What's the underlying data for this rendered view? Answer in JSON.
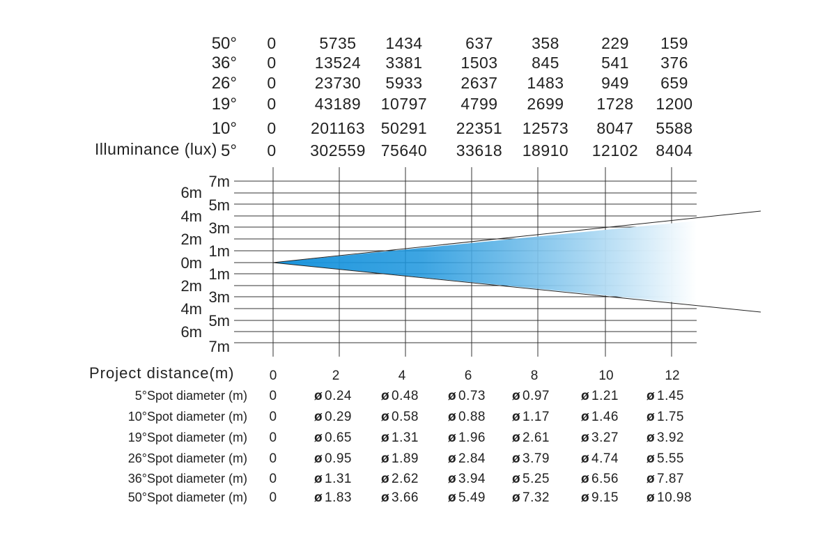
{
  "colors": {
    "beam_start": "#1b95dd",
    "beam_end": "#ffffff",
    "line": "#333333",
    "text": "#222222"
  },
  "illuminance": {
    "label": "Illuminance (lux)",
    "rows": [
      {
        "angle": "50°",
        "values": [
          "0",
          "5735",
          "1434",
          "637",
          "358",
          "229",
          "159"
        ]
      },
      {
        "angle": "36°",
        "values": [
          "0",
          "13524",
          "3381",
          "1503",
          "845",
          "541",
          "376"
        ]
      },
      {
        "angle": "26°",
        "values": [
          "0",
          "23730",
          "5933",
          "2637",
          "1483",
          "949",
          "659"
        ]
      },
      {
        "angle": "19°",
        "values": [
          "0",
          "43189",
          "10797",
          "4799",
          "2699",
          "1728",
          "1200"
        ]
      },
      {
        "angle": "10°",
        "values": [
          "0",
          "201163",
          "50291",
          "22351",
          "12573",
          "8047",
          "5588"
        ]
      },
      {
        "angle": "5°",
        "values": [
          "0",
          "302559",
          "75640",
          "33618",
          "18910",
          "12102",
          "8404"
        ]
      }
    ]
  },
  "beam_scale": {
    "odd_labels": [
      "7m",
      "5m",
      "3m",
      "1m",
      "1m",
      "3m",
      "5m",
      "7m"
    ],
    "even_labels": [
      "6m",
      "4m",
      "2m",
      "0m",
      "2m",
      "4m",
      "6m"
    ]
  },
  "project_distance": {
    "label": "Project distance(m)",
    "values": [
      "0",
      "2",
      "4",
      "6",
      "8",
      "10",
      "12"
    ]
  },
  "spot_diameters": {
    "symbol": "ø",
    "rows": [
      {
        "label": "5°Spot diameter (m)",
        "zero": "0",
        "values": [
          "0.24",
          "0.48",
          "0.73",
          "0.97",
          "1.21",
          "1.45"
        ]
      },
      {
        "label": "10°Spot diameter (m)",
        "zero": "0",
        "values": [
          "0.29",
          "0.58",
          "0.88",
          "1.17",
          "1.46",
          "1.75"
        ]
      },
      {
        "label": "19°Spot diameter (m)",
        "zero": "0",
        "values": [
          "0.65",
          "1.31",
          "1.96",
          "2.61",
          "3.27",
          "3.92"
        ]
      },
      {
        "label": "26°Spot diameter (m)",
        "zero": "0",
        "values": [
          "0.95",
          "1.89",
          "2.84",
          "3.79",
          "4.74",
          "5.55"
        ]
      },
      {
        "label": "36°Spot diameter (m)",
        "zero": "0",
        "values": [
          "1.31",
          "2.62",
          "3.94",
          "5.25",
          "6.56",
          "7.87"
        ]
      },
      {
        "label": "50°Spot diameter (m)",
        "zero": "0",
        "values": [
          "1.83",
          "3.66",
          "5.49",
          "7.32",
          "9.15",
          "10.98"
        ]
      }
    ]
  }
}
